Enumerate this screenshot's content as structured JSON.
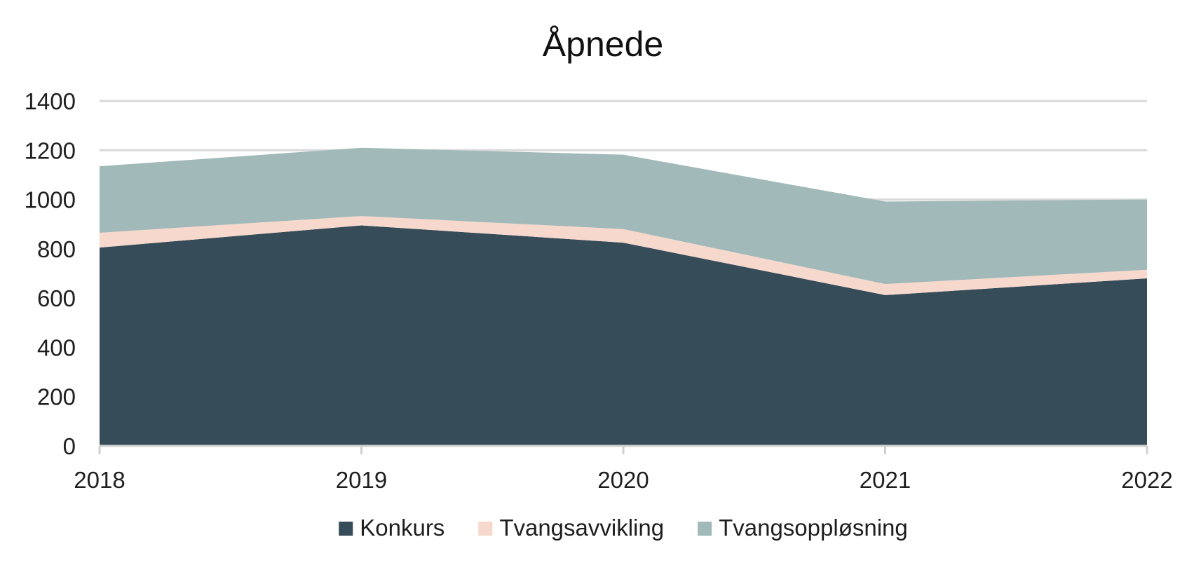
{
  "chart_data": {
    "type": "area",
    "stacked": true,
    "title": "Åpnede",
    "xlabel": "",
    "ylabel": "",
    "x": [
      "2018",
      "2019",
      "2020",
      "2021",
      "2022"
    ],
    "ylim": [
      0,
      1400
    ],
    "yticks": [
      0,
      200,
      400,
      600,
      800,
      1000,
      1200,
      1400
    ],
    "ytick_labels": [
      "0",
      "200",
      "400",
      "600",
      "800",
      "1000",
      "1200",
      "1400"
    ],
    "grid": true,
    "legend_position": "bottom",
    "series": [
      {
        "name": "Konkurs",
        "color": "#374c59",
        "values": [
          805,
          895,
          825,
          612,
          680
        ]
      },
      {
        "name": "Tvangsavvikling",
        "color": "#f7d8cd",
        "values": [
          60,
          38,
          55,
          45,
          35
        ]
      },
      {
        "name": "Tvangsoppløsning",
        "color": "#a1b9b8",
        "values": [
          270,
          277,
          302,
          335,
          285
        ]
      }
    ]
  }
}
